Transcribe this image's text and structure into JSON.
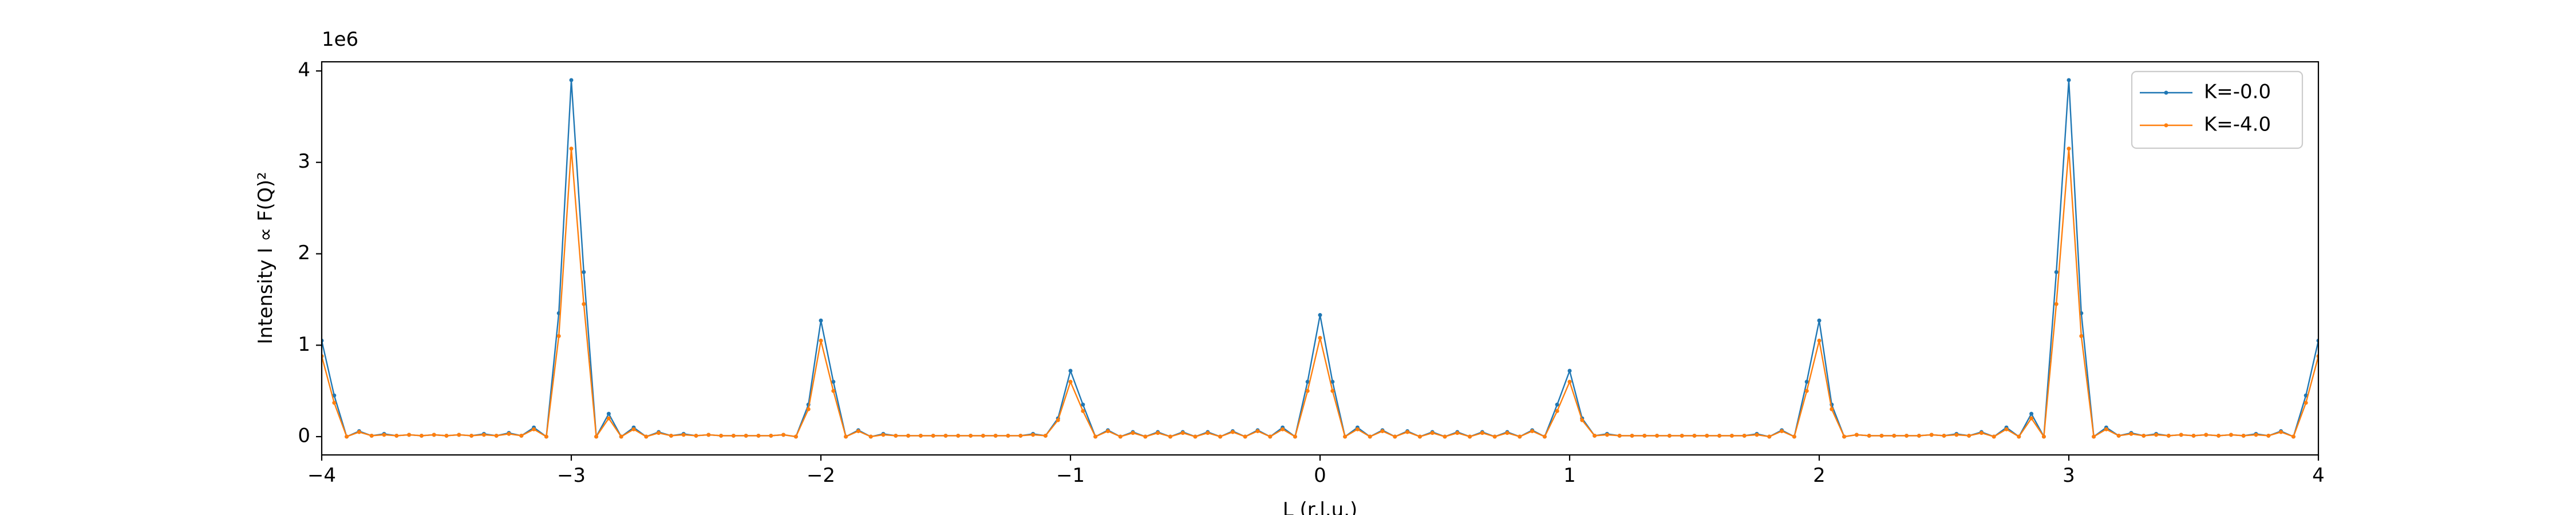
{
  "chart_data": {
    "type": "line",
    "x_label": "L (r.l.u.)",
    "y_label": "Intensity I ∝ F(Q)²",
    "y_offset_label": "1e6",
    "x": [
      -4,
      -3.95,
      -3.9,
      -3.85,
      -3.8,
      -3.75,
      -3.7,
      -3.65,
      -3.6,
      -3.55,
      -3.5,
      -3.45,
      -3.4,
      -3.35,
      -3.3,
      -3.25,
      -3.2,
      -3.15,
      -3.1,
      -3.05,
      -3,
      -2.95,
      -2.9,
      -2.85,
      -2.8,
      -2.75,
      -2.7,
      -2.65,
      -2.6,
      -2.55,
      -2.5,
      -2.45,
      -2.4,
      -2.35,
      -2.3,
      -2.25,
      -2.2,
      -2.15,
      -2.1,
      -2.05,
      -2,
      -1.95,
      -1.9,
      -1.85,
      -1.8,
      -1.75,
      -1.7,
      -1.65,
      -1.6,
      -1.55,
      -1.5,
      -1.45,
      -1.4,
      -1.35,
      -1.3,
      -1.25,
      -1.2,
      -1.15,
      -1.1,
      -1.05,
      -1,
      -0.95,
      -0.9,
      -0.85,
      -0.8,
      -0.75,
      -0.7,
      -0.65,
      -0.6,
      -0.55,
      -0.5,
      -0.45,
      -0.4,
      -0.35,
      -0.3,
      -0.25,
      -0.2,
      -0.15,
      -0.1,
      -0.05,
      0,
      0.05,
      0.1,
      0.15,
      0.2,
      0.25,
      0.3,
      0.35,
      0.4,
      0.45,
      0.5,
      0.55,
      0.6,
      0.65,
      0.7,
      0.75,
      0.8,
      0.85,
      0.9,
      0.95,
      1,
      1.05,
      1.1,
      1.15,
      1.2,
      1.25,
      1.3,
      1.35,
      1.4,
      1.45,
      1.5,
      1.55,
      1.6,
      1.65,
      1.7,
      1.75,
      1.8,
      1.85,
      1.9,
      1.95,
      2,
      2.05,
      2.1,
      2.15,
      2.2,
      2.25,
      2.3,
      2.35,
      2.4,
      2.45,
      2.5,
      2.55,
      2.6,
      2.65,
      2.7,
      2.75,
      2.8,
      2.85,
      2.9,
      2.95,
      3,
      3.05,
      3.1,
      3.15,
      3.2,
      3.25,
      3.3,
      3.35,
      3.4,
      3.45,
      3.5,
      3.55,
      3.6,
      3.65,
      3.7,
      3.75,
      3.8,
      3.85,
      3.9,
      3.95,
      4
    ],
    "series": [
      {
        "name": "K=-0.0",
        "color": "#1f77b4",
        "values": [
          1.05,
          0.45,
          0,
          0.06,
          0.01,
          0.03,
          0.01,
          0.02,
          0.01,
          0.02,
          0.01,
          0.02,
          0.01,
          0.03,
          0.01,
          0.04,
          0.01,
          0.1,
          0,
          1.35,
          3.9,
          1.8,
          0,
          0.25,
          0,
          0.1,
          0,
          0.05,
          0.01,
          0.03,
          0.01,
          0.02,
          0.01,
          0.01,
          0.01,
          0.01,
          0.01,
          0.02,
          0,
          0.35,
          1.27,
          0.6,
          0,
          0.07,
          0,
          0.03,
          0.01,
          0.01,
          0.01,
          0.01,
          0.01,
          0.01,
          0.01,
          0.01,
          0.01,
          0.01,
          0.01,
          0.03,
          0.01,
          0.2,
          0.72,
          0.35,
          0,
          0.07,
          0,
          0.05,
          0,
          0.05,
          0,
          0.05,
          0,
          0.05,
          0,
          0.06,
          0,
          0.07,
          0,
          0.1,
          0,
          0.6,
          1.33,
          0.6,
          0,
          0.1,
          0,
          0.07,
          0,
          0.06,
          0,
          0.05,
          0,
          0.05,
          0,
          0.05,
          0,
          0.05,
          0,
          0.07,
          0,
          0.35,
          0.72,
          0.2,
          0.01,
          0.03,
          0.01,
          0.01,
          0.01,
          0.01,
          0.01,
          0.01,
          0.01,
          0.01,
          0.01,
          0.01,
          0.01,
          0.03,
          0,
          0.07,
          0,
          0.6,
          1.27,
          0.35,
          0,
          0.02,
          0.01,
          0.01,
          0.01,
          0.01,
          0.01,
          0.02,
          0.01,
          0.03,
          0.01,
          0.05,
          0,
          0.1,
          0,
          0.25,
          0,
          1.8,
          3.9,
          1.35,
          0,
          0.1,
          0.01,
          0.04,
          0.01,
          0.03,
          0.01,
          0.02,
          0.01,
          0.02,
          0.01,
          0.02,
          0.01,
          0.03,
          0.01,
          0.06,
          0,
          0.45,
          1.05
        ]
      },
      {
        "name": "K=-4.0",
        "color": "#ff7f0e",
        "values": [
          0.88,
          0.37,
          0,
          0.05,
          0.01,
          0.02,
          0.01,
          0.02,
          0.01,
          0.02,
          0.01,
          0.02,
          0.01,
          0.02,
          0.01,
          0.03,
          0.01,
          0.08,
          0,
          1.1,
          3.15,
          1.45,
          0,
          0.2,
          0,
          0.08,
          0,
          0.04,
          0.01,
          0.02,
          0.01,
          0.02,
          0.01,
          0.01,
          0.01,
          0.01,
          0.01,
          0.02,
          0,
          0.3,
          1.05,
          0.5,
          0,
          0.06,
          0,
          0.02,
          0.01,
          0.01,
          0.01,
          0.01,
          0.01,
          0.01,
          0.01,
          0.01,
          0.01,
          0.01,
          0.01,
          0.02,
          0.01,
          0.18,
          0.6,
          0.28,
          0,
          0.06,
          0,
          0.04,
          0,
          0.04,
          0,
          0.04,
          0,
          0.04,
          0,
          0.05,
          0,
          0.06,
          0,
          0.08,
          0,
          0.5,
          1.08,
          0.5,
          0,
          0.08,
          0,
          0.06,
          0,
          0.05,
          0,
          0.04,
          0,
          0.04,
          0,
          0.04,
          0,
          0.04,
          0,
          0.06,
          0,
          0.28,
          0.6,
          0.18,
          0.01,
          0.02,
          0.01,
          0.01,
          0.01,
          0.01,
          0.01,
          0.01,
          0.01,
          0.01,
          0.01,
          0.01,
          0.01,
          0.02,
          0,
          0.06,
          0,
          0.5,
          1.05,
          0.3,
          0,
          0.02,
          0.01,
          0.01,
          0.01,
          0.01,
          0.01,
          0.02,
          0.01,
          0.02,
          0.01,
          0.04,
          0,
          0.08,
          0,
          0.2,
          0,
          1.45,
          3.15,
          1.1,
          0,
          0.08,
          0.01,
          0.03,
          0.01,
          0.02,
          0.01,
          0.02,
          0.01,
          0.02,
          0.01,
          0.02,
          0.01,
          0.02,
          0.01,
          0.05,
          0,
          0.37,
          0.88
        ]
      }
    ],
    "xlim": [
      -4,
      4
    ],
    "xticks": [
      {
        "value": -4,
        "label": "−4"
      },
      {
        "value": -3,
        "label": "−3"
      },
      {
        "value": -2,
        "label": "−2"
      },
      {
        "value": -1,
        "label": "−1"
      },
      0,
      1,
      2,
      3,
      4
    ],
    "ylim": [
      -0.2,
      4.1
    ],
    "yticks": [
      0,
      1,
      2,
      3,
      4
    ],
    "grid": false,
    "legend": "upper right"
  }
}
